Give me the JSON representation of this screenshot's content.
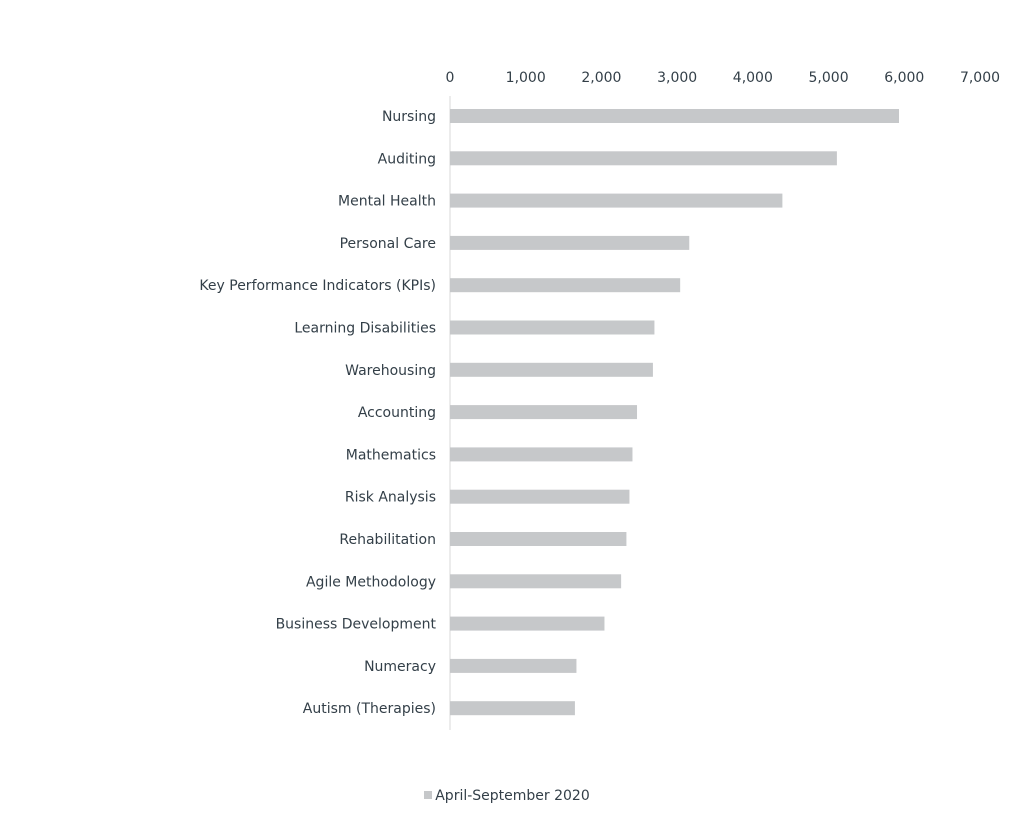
{
  "chart_data": {
    "type": "bar",
    "orientation": "horizontal",
    "categories": [
      "Nursing",
      "Auditing",
      "Mental Health",
      "Personal Care",
      "Key Performance Indicators (KPIs)",
      "Learning Disabilities",
      "Warehousing",
      "Accounting",
      "Mathematics",
      "Risk Analysis",
      "Rehabilitation",
      "Agile Methodology",
      "Business Development",
      "Numeracy",
      "Autism (Therapies)"
    ],
    "series": [
      {
        "name": "April-September 2020",
        "color": "#c6c8ca",
        "values": [
          5930,
          5110,
          4390,
          3160,
          3040,
          2700,
          2680,
          2470,
          2410,
          2370,
          2330,
          2260,
          2040,
          1670,
          1650
        ]
      }
    ],
    "xlim": [
      0,
      7000
    ],
    "xticks": [
      0,
      1000,
      2000,
      3000,
      4000,
      5000,
      6000,
      7000
    ],
    "xtick_labels": [
      "0",
      "1,000",
      "2,000",
      "3,000",
      "4,000",
      "5,000",
      "6,000",
      "7,000"
    ],
    "x_axis_position": "top",
    "grid": false,
    "legend_position": "bottom-center",
    "title": "",
    "xlabel": "",
    "ylabel": ""
  },
  "legend": {
    "label": "April-September 2020"
  }
}
